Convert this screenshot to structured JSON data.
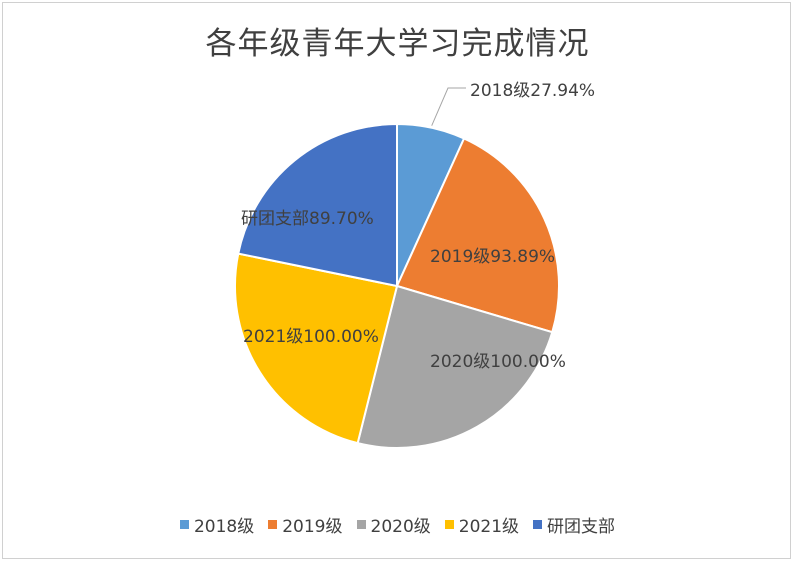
{
  "chart_data": {
    "type": "pie",
    "title": "各年级青年大学习完成情况",
    "categories": [
      "2018级",
      "2019级",
      "2020级",
      "2021级",
      "研团支部"
    ],
    "series": [
      {
        "values": [
          27.94,
          93.89,
          100.0,
          100.0,
          89.7
        ],
        "labels": [
          "27.94%",
          "93.89%",
          "100.00%",
          "100.00%",
          "89.70%"
        ]
      }
    ],
    "colors": [
      "#5B9BD5",
      "#ED7D31",
      "#A5A5A5",
      "#FFC000",
      "#4472C4"
    ],
    "legend_position": "bottom"
  }
}
